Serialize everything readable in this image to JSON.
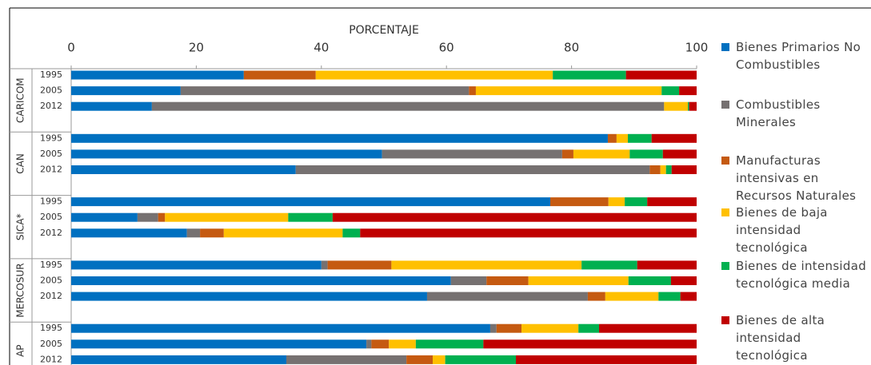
{
  "chart_data": {
    "type": "stacked-bar-horizontal",
    "x_label": "PORCENTAJE",
    "groups": [
      "CARICOM",
      "CAN",
      "SICA*",
      "MERCOSUR",
      "AP"
    ],
    "categories": [
      "1995",
      "2005",
      "2012",
      "1995",
      "2005",
      "2012",
      "1995",
      "2005",
      "2012",
      "1995",
      "2005",
      "2012",
      "1995",
      "2005",
      "2012"
    ],
    "series": [
      {
        "name": "Bienes Primarios No Combustibles",
        "color": "#0070c0",
        "values": [
          27.6,
          17.5,
          12.9,
          85.8,
          49.7,
          35.9,
          76.6,
          10.6,
          18.5,
          40.0,
          60.7,
          56.9,
          67.0,
          47.2,
          34.4
        ]
      },
      {
        "name": "Combustibles Minerales",
        "color": "#767171",
        "values": [
          0,
          46.1,
          81.9,
          0,
          28.8,
          56.6,
          0,
          3.3,
          2.1,
          1.0,
          5.7,
          25.7,
          1.0,
          0.8,
          19.2
        ]
      },
      {
        "name": "Manufacturas intensivas en Recursos Naturales",
        "color": "#c55a11",
        "values": [
          11.5,
          1.1,
          0,
          1.4,
          1.8,
          1.7,
          9.3,
          1.1,
          3.8,
          10.2,
          6.7,
          2.8,
          4.0,
          2.8,
          4.2
        ]
      },
      {
        "name": "Bienes de baja intensidad tecnológica",
        "color": "#ffc000",
        "values": [
          37.9,
          29.7,
          3.8,
          1.8,
          9.0,
          0.9,
          2.6,
          19.7,
          19.0,
          30.4,
          16.0,
          8.5,
          9.1,
          4.3,
          2.0
        ]
      },
      {
        "name": "Bienes de intensidad tecnológica media",
        "color": "#00b050",
        "values": [
          11.7,
          2.8,
          0.2,
          3.8,
          5.3,
          0.9,
          3.6,
          7.1,
          2.8,
          8.9,
          6.8,
          3.5,
          3.3,
          10.8,
          11.3
        ]
      },
      {
        "name": "Bienes de alta intensidad tecnológica",
        "color": "#c00000",
        "values": [
          11.3,
          2.8,
          1.2,
          7.2,
          5.4,
          4.0,
          7.9,
          58.2,
          53.8,
          9.5,
          4.1,
          2.6,
          15.6,
          34.1,
          28.9
        ]
      }
    ],
    "xlim": [
      0,
      100
    ],
    "xticks": [
      0,
      20,
      40,
      60,
      80,
      100
    ]
  }
}
